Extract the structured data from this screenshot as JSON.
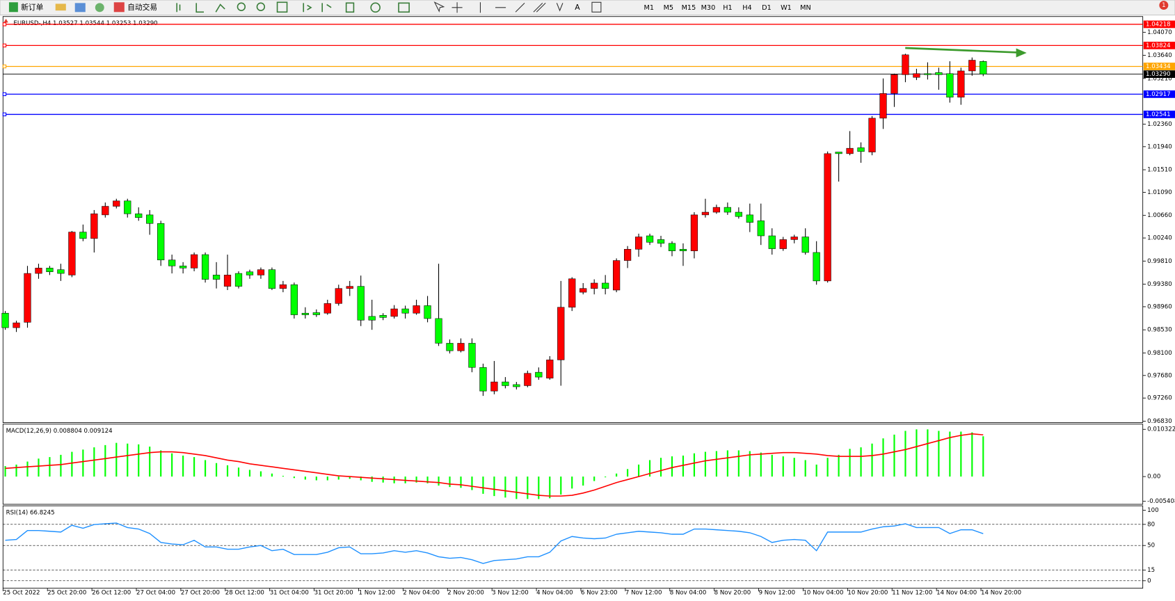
{
  "toolbar": {
    "new_order": "新订单",
    "auto_trading": "自动交易",
    "timeframes": [
      "M1",
      "M5",
      "M15",
      "M30",
      "H1",
      "H4",
      "D1",
      "W1",
      "MN"
    ],
    "notifications": 1
  },
  "chart_data": [
    {
      "type": "candlestick",
      "title": "EURUSD-,H4  1.03527 1.03544 1.03253 1.03290",
      "up_color": "#ff0000",
      "down_color": "#00ff00",
      "categories": [
        "25 Oct 2022",
        null,
        null,
        null,
        "25 Oct 20:00",
        null,
        null,
        null,
        "26 Oct 12:00",
        null,
        null,
        null,
        "27 Oct 04:00",
        null,
        null,
        null,
        "27 Oct 20:00",
        null,
        null,
        null,
        "28 Oct 12:00",
        null,
        null,
        null,
        "31 Oct 04:00",
        null,
        null,
        null,
        "31 Oct 20:00",
        null,
        null,
        null,
        "1 Nov 12:00",
        null,
        null,
        null,
        "2 Nov 04:00",
        null,
        null,
        null,
        "2 Nov 20:00",
        null,
        null,
        null,
        "3 Nov 12:00",
        null,
        null,
        null,
        "4 Nov 04:00",
        null,
        null,
        null,
        "6 Nov 23:00",
        null,
        null,
        null,
        "7 Nov 12:00",
        null,
        null,
        null,
        "8 Nov 04:00",
        null,
        null,
        null,
        "8 Nov 20:00",
        null,
        null,
        null,
        "9 Nov 12:00",
        null,
        null,
        null,
        "10 Nov 04:00",
        null,
        null,
        null,
        "10 Nov 20:00",
        null,
        null,
        null,
        "11 Nov 12:00",
        null,
        null,
        null,
        "14 Nov 04:00",
        null,
        null,
        null,
        "14 Nov 20:00"
      ],
      "open": [
        0.9884,
        0.9857,
        0.9867,
        0.9958,
        0.9968,
        0.9965,
        0.9955,
        1.0035,
        1.0023,
        1.0067,
        1.0083,
        1.0093,
        1.0069,
        1.0067,
        1.0051,
        0.9983,
        0.9972,
        0.9968,
        0.9993,
        0.9955,
        0.9934,
        0.9958,
        0.9961,
        0.9955,
        0.9965,
        0.993,
        0.9937,
        0.9884,
        0.9885,
        0.9884,
        0.9902,
        0.993,
        0.9934,
        0.9878,
        0.988,
        0.9878,
        0.9892,
        0.9884,
        0.9898,
        0.9874,
        0.9828,
        0.9814,
        0.9828,
        0.9783,
        0.9739,
        0.9756,
        0.9751,
        0.9749,
        0.9774,
        0.9763,
        0.9797,
        0.9895,
        0.9923,
        0.993,
        0.994,
        0.9927,
        0.9982,
        1.0003,
        1.0028,
        1.0021,
        1.0014,
        1.0003,
        1.0,
        1.0067,
        1.0072,
        1.0081,
        1.0072,
        1.0067,
        1.0056,
        1.0028,
        1.0004,
        1.0021,
        1.0026,
        0.9997,
        0.9944,
        1.0184,
        1.0181,
        1.0192,
        1.0184,
        1.0247,
        1.0293,
        1.0328,
        1.0323,
        1.033,
        1.0332,
        1.033,
        1.0286,
        1.0335,
        1.03527
      ],
      "high": [
        0.9888,
        0.987,
        0.9972,
        0.9976,
        0.9972,
        0.9976,
        1.0037,
        1.0049,
        1.0076,
        1.009,
        1.0097,
        1.0097,
        1.0081,
        1.0076,
        1.0056,
        0.9993,
        0.9979,
        0.9997,
        0.9997,
        0.9979,
        0.9993,
        0.9962,
        0.9965,
        0.9969,
        0.9969,
        0.9944,
        0.9941,
        0.9895,
        0.9891,
        0.9909,
        0.9937,
        0.9944,
        0.9954,
        0.9909,
        0.9884,
        0.9899,
        0.9898,
        0.9909,
        0.9916,
        0.9976,
        0.9835,
        0.9837,
        0.9837,
        0.979,
        0.9795,
        0.9765,
        0.9756,
        0.9777,
        0.9783,
        0.9804,
        0.9944,
        0.9951,
        0.994,
        0.9947,
        0.9955,
        0.9986,
        1.0009,
        1.0032,
        1.0032,
        1.0028,
        1.0018,
        1.0014,
        1.0072,
        1.0097,
        1.0086,
        1.009,
        1.0081,
        1.0088,
        1.0088,
        1.0042,
        1.0026,
        1.003,
        1.0042,
        1.0018,
        1.0185,
        1.0184,
        1.0223,
        1.0202,
        1.0251,
        1.0321,
        1.033,
        1.0367,
        1.0339,
        1.0351,
        1.0341,
        1.0353,
        1.0341,
        1.036,
        1.03544
      ],
      "low": [
        0.9853,
        0.9849,
        0.9857,
        0.9948,
        0.9955,
        0.9944,
        0.9951,
        1.0018,
        0.9997,
        1.0062,
        1.0079,
        1.0062,
        1.0056,
        1.003,
        0.9972,
        0.9958,
        0.9958,
        0.9962,
        0.9941,
        0.993,
        0.9927,
        0.993,
        0.9948,
        0.9948,
        0.9927,
        0.9923,
        0.9874,
        0.9874,
        0.9877,
        0.9881,
        0.9898,
        0.9916,
        0.986,
        0.9853,
        0.9871,
        0.9874,
        0.9874,
        0.9881,
        0.9867,
        0.9823,
        0.9809,
        0.9811,
        0.9774,
        0.973,
        0.9733,
        0.9744,
        0.9742,
        0.9746,
        0.976,
        0.976,
        0.9749,
        0.9888,
        0.9919,
        0.9919,
        0.9919,
        0.9923,
        0.9968,
        0.9989,
        1.0011,
        1.0007,
        0.999,
        0.9972,
        0.9986,
        1.0062,
        1.0069,
        1.0067,
        1.006,
        1.0035,
        1.0011,
        0.9993,
        1.0,
        1.0014,
        0.9993,
        0.9937,
        0.9941,
        1.0129,
        1.0178,
        1.0164,
        1.0178,
        1.0227,
        1.0268,
        1.0314,
        1.0318,
        1.0319,
        1.03,
        1.0276,
        1.0272,
        1.0326,
        1.03253
      ],
      "close": [
        0.9857,
        0.9866,
        0.9958,
        0.9968,
        0.9961,
        0.9958,
        1.0035,
        1.0023,
        1.0069,
        1.0083,
        1.0093,
        1.0069,
        1.0062,
        1.0051,
        0.9983,
        0.9972,
        0.9968,
        0.9993,
        0.9947,
        0.9947,
        0.9955,
        0.9934,
        0.9955,
        0.9965,
        0.993,
        0.9937,
        0.9881,
        0.9881,
        0.9881,
        0.9902,
        0.993,
        0.9934,
        0.9871,
        0.9871,
        0.9876,
        0.9892,
        0.9884,
        0.9898,
        0.9874,
        0.9828,
        0.9814,
        0.9828,
        0.9783,
        0.9739,
        0.9756,
        0.9749,
        0.9747,
        0.9772,
        0.9765,
        0.9797,
        0.9895,
        0.9948,
        0.993,
        0.994,
        0.993,
        0.9982,
        1.0003,
        1.0026,
        1.0016,
        1.0014,
        1.0,
        1.0,
        1.0067,
        1.0072,
        1.0081,
        1.0072,
        1.0064,
        1.0053,
        1.0028,
        1.0004,
        1.0021,
        1.0026,
        0.9997,
        0.9944,
        1.0181,
        1.0181,
        1.0191,
        1.0185,
        1.0247,
        1.0293,
        1.0328,
        1.0365,
        1.033,
        1.0328,
        1.0328,
        1.0286,
        1.0335,
        1.0355,
        1.0329
      ],
      "ylim": [
        0.96802,
        1.04321
      ],
      "yticks": [
        {
          "value": 0.9683,
          "label": "0.96830"
        },
        {
          "value": 0.9726,
          "label": "0.97260"
        },
        {
          "value": 0.9768,
          "label": "0.97680"
        },
        {
          "value": 0.981,
          "label": "0.98100"
        },
        {
          "value": 0.9853,
          "label": "0.98530"
        },
        {
          "value": 0.9896,
          "label": "0.98960"
        },
        {
          "value": 0.9938,
          "label": "0.99380"
        },
        {
          "value": 0.9981,
          "label": "0.99810"
        },
        {
          "value": 1.0024,
          "label": "1.00240"
        },
        {
          "value": 1.0066,
          "label": "1.00660"
        },
        {
          "value": 1.0109,
          "label": "1.01090"
        },
        {
          "value": 1.0151,
          "label": "1.01510"
        },
        {
          "value": 1.0194,
          "label": "1.01940"
        },
        {
          "value": 1.0236,
          "label": "1.02360"
        },
        {
          "value": 1.0321,
          "label": "1.03210"
        },
        {
          "value": 1.0364,
          "label": "1.03640"
        },
        {
          "value": 1.0407,
          "label": "1.04070"
        }
      ],
      "hlines": [
        {
          "value": 1.04218,
          "color": "#ff0000"
        },
        {
          "value": 1.03824,
          "color": "#ff0000"
        },
        {
          "value": 1.03434,
          "color": "#ffa500"
        },
        {
          "value": 1.02917,
          "color": "#0000ff"
        },
        {
          "value": 1.02541,
          "color": "#0000ff"
        }
      ],
      "last_price": {
        "value": 1.0329,
        "label": "1.03290"
      }
    },
    {
      "type": "macd",
      "title": "MACD(12,26,9) 0.008804 0.009124",
      "series": [
        {
          "type": "bar",
          "color": "#00ff00",
          "values": [
            0.00229,
            0.00262,
            0.00328,
            0.00393,
            0.00426,
            0.00475,
            0.00541,
            0.0059,
            0.00639,
            0.00688,
            0.00737,
            0.00721,
            0.00704,
            0.00655,
            0.00573,
            0.00508,
            0.00459,
            0.00426,
            0.0036,
            0.00295,
            0.00246,
            0.00197,
            0.00147,
            0.00115,
            0.00066,
            0.00016,
            -0.00033,
            -0.00066,
            -0.00082,
            -0.00082,
            -0.00066,
            -0.00049,
            -0.00082,
            -0.00115,
            -0.00131,
            -0.00147,
            -0.00147,
            -0.00131,
            -0.00147,
            -0.00197,
            -0.00229,
            -0.00246,
            -0.00295,
            -0.00377,
            -0.00426,
            -0.00459,
            -0.00491,
            -0.00491,
            -0.00491,
            -0.00475,
            -0.00393,
            -0.00262,
            -0.00197,
            -0.00098,
            -0.00016,
            0.00066,
            0.00164,
            0.00262,
            0.0036,
            0.0041,
            0.00442,
            0.00459,
            0.00508,
            0.00541,
            0.00557,
            0.00573,
            0.00573,
            0.00557,
            0.00524,
            0.00475,
            0.00442,
            0.0041,
            0.0036,
            0.00262,
            0.0041,
            0.00475,
            0.00606,
            0.00639,
            0.00721,
            0.00835,
            0.00917,
            0.00999,
            0.01032,
            0.01032,
            0.00999,
            0.00983,
            0.00983,
            0.00966,
            0.008804
          ]
        },
        {
          "type": "line",
          "color": "#ff0000",
          "values": [
            0.0018,
            0.00197,
            0.00213,
            0.00229,
            0.00246,
            0.00262,
            0.00295,
            0.00328,
            0.0036,
            0.00393,
            0.00426,
            0.00459,
            0.00491,
            0.00524,
            0.00541,
            0.00541,
            0.00524,
            0.00491,
            0.00459,
            0.0041,
            0.0036,
            0.00328,
            0.00278,
            0.00246,
            0.00213,
            0.0018,
            0.00147,
            0.00115,
            0.00082,
            0.00049,
            0.00016,
            0,
            -0.00016,
            -0.00033,
            -0.00049,
            -0.00066,
            -0.00082,
            -0.00098,
            -0.00115,
            -0.00131,
            -0.00164,
            -0.0018,
            -0.00213,
            -0.00246,
            -0.00278,
            -0.00311,
            -0.00344,
            -0.00377,
            -0.0041,
            -0.00426,
            -0.00426,
            -0.0041,
            -0.0036,
            -0.00295,
            -0.00213,
            -0.00131,
            -0.00066,
            0,
            0.00066,
            0.00131,
            0.00197,
            0.00246,
            0.00295,
            0.00344,
            0.00377,
            0.0041,
            0.00442,
            0.00475,
            0.00491,
            0.00508,
            0.00524,
            0.00524,
            0.00508,
            0.00491,
            0.00459,
            0.00442,
            0.00442,
            0.00442,
            0.00459,
            0.00491,
            0.00541,
            0.0059,
            0.00655,
            0.00721,
            0.00786,
            0.00852,
            0.00901,
            0.00934,
            0.009124
          ]
        }
      ],
      "ylim": [
        -0.0059,
        0.0113
      ],
      "yticks": [
        -0.005408,
        {
          "value": 0,
          "label": "0.00"
        },
        0.010322
      ]
    },
    {
      "type": "line",
      "title": "RSI(14) 66.8245",
      "color": "#1e90ff",
      "values": [
        57.4,
        58.5,
        71.3,
        71.3,
        70.2,
        69.1,
        78.7,
        74.5,
        79.8,
        80.9,
        81.9,
        75.5,
        73.4,
        67.0,
        54.3,
        52.1,
        51.1,
        57.4,
        47.9,
        47.9,
        44.7,
        44.7,
        47.9,
        50.0,
        42.6,
        44.7,
        37.2,
        37.2,
        37.2,
        40.4,
        46.8,
        47.9,
        38.3,
        38.3,
        39.4,
        42.6,
        40.4,
        42.6,
        39.4,
        34.0,
        31.9,
        33.0,
        29.8,
        24.5,
        28.7,
        29.8,
        30.9,
        34.0,
        34.0,
        40.4,
        56.4,
        62.8,
        60.6,
        59.6,
        60.6,
        66.0,
        68.1,
        70.2,
        69.1,
        68.1,
        66.0,
        66.0,
        73.4,
        73.4,
        72.3,
        71.3,
        70.2,
        68.1,
        62.8,
        54.3,
        57.4,
        58.5,
        57.4,
        42.6,
        69.1,
        69.1,
        69.1,
        69.1,
        73.4,
        76.6,
        77.7,
        80.9,
        75.5,
        75.5,
        75.5,
        67.0,
        72.3,
        72.3,
        66.8245
      ],
      "ylim": [
        -9.6,
        105.3
      ],
      "yticks": [
        0,
        15,
        50,
        80,
        100
      ]
    }
  ]
}
